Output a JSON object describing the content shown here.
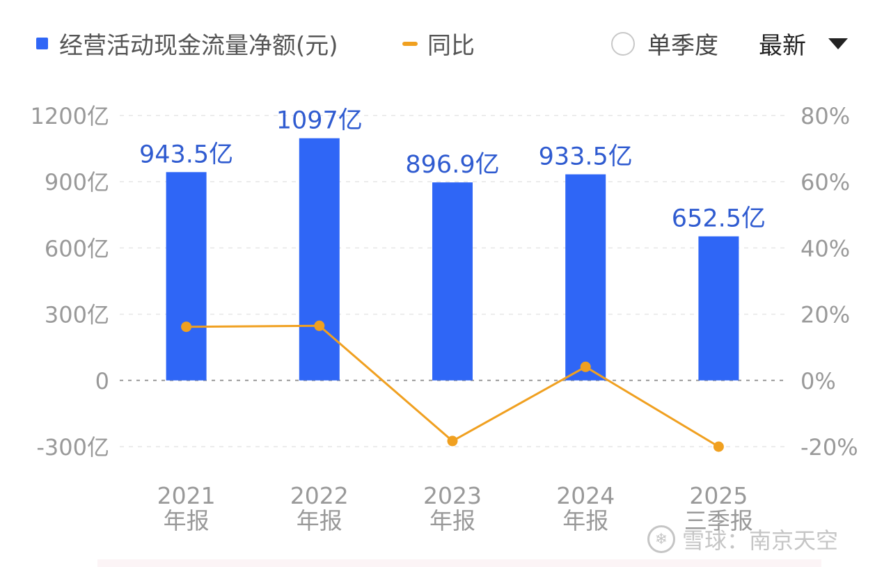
{
  "legend": {
    "cash_label": "经营活动现金流量净额(元)",
    "yoy_label": "同比"
  },
  "controls": {
    "single_quarter_label": "单季度",
    "period_label": "最新"
  },
  "colors": {
    "bar": "#2F66F6",
    "line": "#F0A020",
    "bar_label": "#2F5BD0",
    "axis_text": "#999999"
  },
  "icons": {
    "radio": "radio-unchecked-icon",
    "dropdown": "caret-down-icon",
    "watermark": "snowball-logo-icon"
  },
  "chart_data": {
    "type": "bar",
    "categories": [
      [
        "2021",
        "年报"
      ],
      [
        "2022",
        "年报"
      ],
      [
        "2023",
        "年报"
      ],
      [
        "2024",
        "年报"
      ],
      [
        "2025",
        "三季报"
      ]
    ],
    "series": [
      {
        "name": "经营活动现金流量净额(元)",
        "type": "bar",
        "axis": "left",
        "values": [
          943.5,
          1097,
          896.9,
          933.5,
          652.5
        ],
        "data_labels": [
          "943.5亿",
          "1097亿",
          "896.9亿",
          "933.5亿",
          "652.5亿"
        ]
      },
      {
        "name": "同比",
        "type": "line",
        "axis": "right",
        "values": [
          16.2,
          16.5,
          -18.3,
          4.1,
          -20
        ]
      }
    ],
    "y_left": {
      "ticks": [
        1200,
        900,
        600,
        300,
        0,
        -300
      ],
      "tick_labels": [
        "1200亿",
        "900亿",
        "600亿",
        "300亿",
        "0",
        "-300亿"
      ],
      "ylim": [
        -300,
        1200
      ]
    },
    "y_right": {
      "ticks": [
        80,
        60,
        40,
        20,
        0,
        -20
      ],
      "tick_labels": [
        "80%",
        "60%",
        "40%",
        "20%",
        "0%",
        "-20%"
      ],
      "ylim": [
        -20,
        80
      ]
    },
    "grid": true,
    "legend_position": "top-left"
  },
  "watermark": {
    "text": "雪球：南京天空"
  }
}
